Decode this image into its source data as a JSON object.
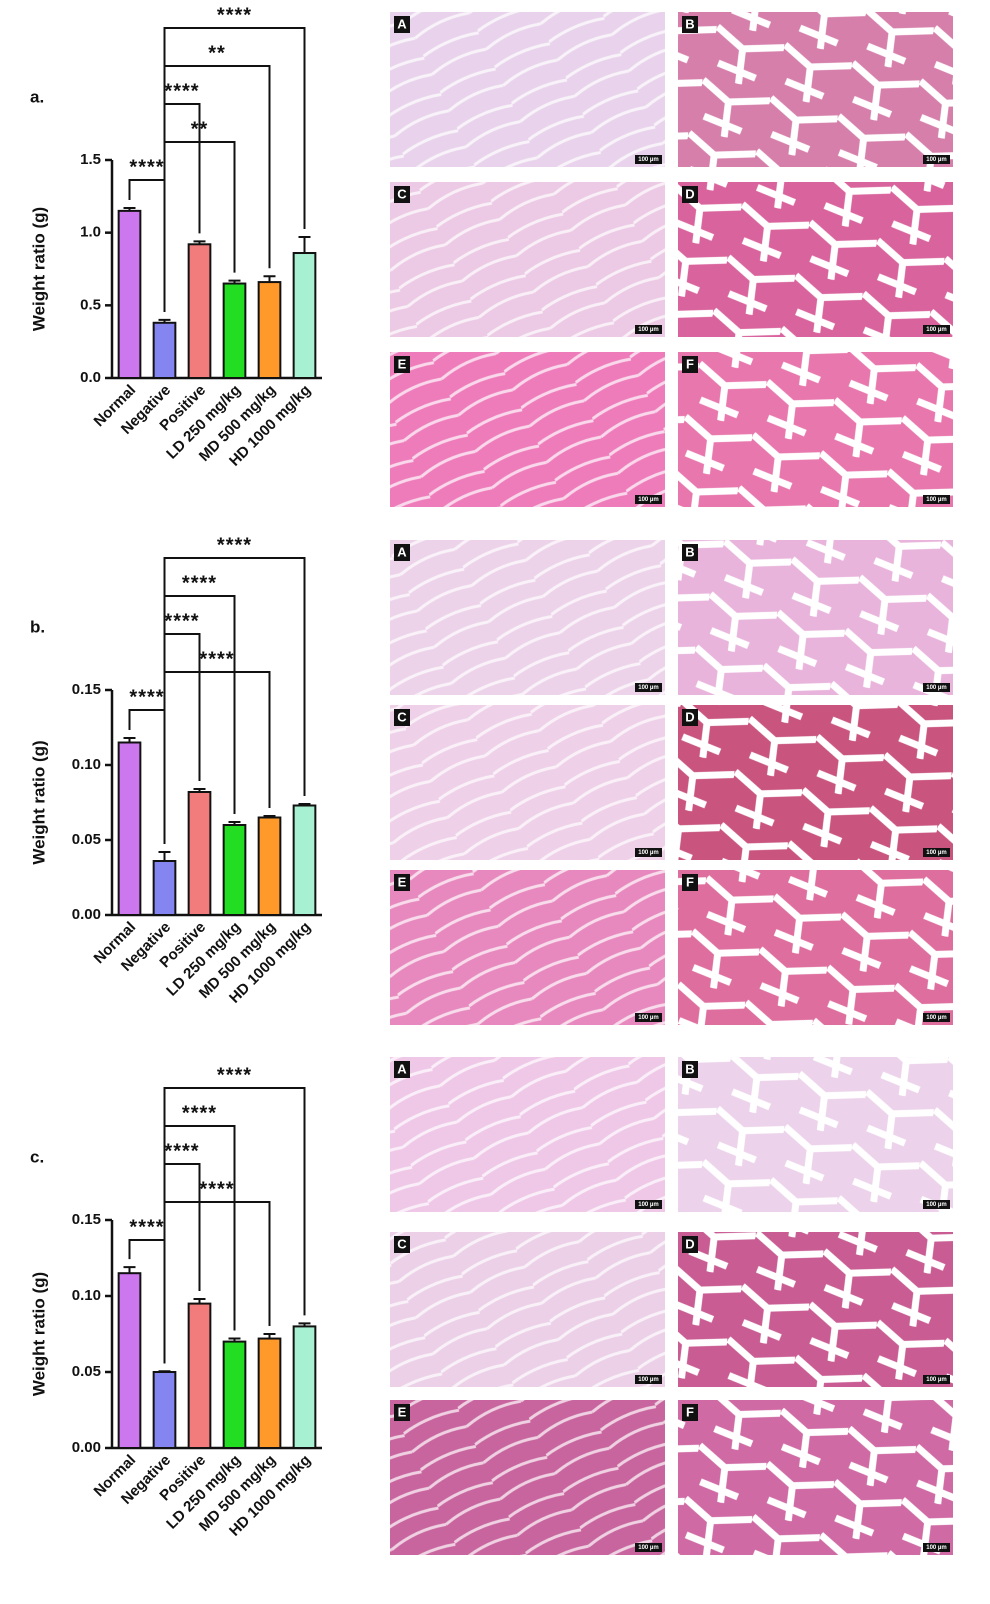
{
  "chart_data": [
    {
      "type": "bar",
      "panel_label": "a.",
      "y_label": "Weight ratio (g)",
      "categories": [
        "Normal",
        "Negative",
        "Positive",
        "LD 250 mg/kg",
        "MD 500 mg/kg",
        "HD 1000 mg/kg"
      ],
      "values": [
        1.15,
        0.38,
        0.92,
        0.65,
        0.66,
        0.86
      ],
      "errors": [
        0.02,
        0.02,
        0.02,
        0.02,
        0.04,
        0.11
      ],
      "colors": [
        "#cc77ee",
        "#8585f2",
        "#f27b7b",
        "#22dd22",
        "#ff9a2a",
        "#a8f0d2"
      ],
      "ylim": [
        0,
        1.5
      ],
      "yticks": [
        {
          "value": 0,
          "label": "0.0"
        },
        0.5,
        {
          "value": 1,
          "label": "1.0"
        },
        1.5
      ],
      "brackets": [
        {
          "groups": [
            "Normal",
            "Negative"
          ],
          "label": "****"
        },
        {
          "groups": [
            "Negative",
            "LD 250 mg/kg"
          ],
          "label": "**"
        },
        {
          "groups": [
            "Negative",
            "Positive"
          ],
          "label": "****"
        },
        {
          "groups": [
            "Negative",
            "MD 500 mg/kg"
          ],
          "label": "**"
        },
        {
          "groups": [
            "Negative",
            "HD 1000 mg/kg"
          ],
          "label": "****"
        }
      ]
    },
    {
      "type": "bar",
      "panel_label": "b.",
      "y_label": "Weight ratio (g)",
      "categories": [
        "Normal",
        "Negative",
        "Positive",
        "LD 250 mg/kg",
        "MD 500 mg/kg",
        "HD 1000 mg/kg"
      ],
      "values": [
        0.115,
        0.036,
        0.082,
        0.06,
        0.065,
        0.073
      ],
      "errors": [
        0.003,
        0.006,
        0.002,
        0.002,
        0.001,
        0.001
      ],
      "colors": [
        "#cc77ee",
        "#8585f2",
        "#f27b7b",
        "#22dd22",
        "#ff9a2a",
        "#a8f0d2"
      ],
      "ylim": [
        0,
        0.15
      ],
      "yticks": [
        {
          "value": 0,
          "label": "0.00"
        },
        {
          "value": 0.05,
          "label": "0.05"
        },
        {
          "value": 0.1,
          "label": "0.10"
        },
        {
          "value": 0.15,
          "label": "0.15"
        }
      ],
      "brackets": [
        {
          "groups": [
            "Normal",
            "Negative"
          ],
          "label": "****"
        },
        {
          "groups": [
            "Negative",
            "MD 500 mg/kg"
          ],
          "label": "****"
        },
        {
          "groups": [
            "Negative",
            "Positive"
          ],
          "label": "****"
        },
        {
          "groups": [
            "Negative",
            "LD 250 mg/kg"
          ],
          "label": "****"
        },
        {
          "groups": [
            "Negative",
            "HD 1000 mg/kg"
          ],
          "label": "****"
        }
      ]
    },
    {
      "type": "bar",
      "panel_label": "c.",
      "y_label": "Weight ratio (g)",
      "categories": [
        "Normal",
        "Negative",
        "Positive",
        "LD 250 mg/kg",
        "MD 500 mg/kg",
        "HD 1000 mg/kg"
      ],
      "values": [
        0.115,
        0.05,
        0.095,
        0.07,
        0.072,
        0.08
      ],
      "errors": [
        0.004,
        0.0005,
        0.003,
        0.002,
        0.003,
        0.002
      ],
      "colors": [
        "#cc77ee",
        "#8585f2",
        "#f27b7b",
        "#22dd22",
        "#ff9a2a",
        "#a8f0d2"
      ],
      "ylim": [
        0,
        0.15
      ],
      "yticks": [
        {
          "value": 0,
          "label": "0.00"
        },
        {
          "value": 0.05,
          "label": "0.05"
        },
        {
          "value": 0.1,
          "label": "0.10"
        },
        {
          "value": 0.15,
          "label": "0.15"
        }
      ],
      "brackets": [
        {
          "groups": [
            "Normal",
            "Negative"
          ],
          "label": "****"
        },
        {
          "groups": [
            "Negative",
            "MD 500 mg/kg"
          ],
          "label": "****"
        },
        {
          "groups": [
            "Negative",
            "Positive"
          ],
          "label": "****"
        },
        {
          "groups": [
            "Negative",
            "LD 250 mg/kg"
          ],
          "label": "****"
        },
        {
          "groups": [
            "Negative",
            "HD 1000 mg/kg"
          ],
          "label": "****"
        }
      ]
    }
  ],
  "micrographs": [
    {
      "labels": [
        "A",
        "B",
        "C",
        "D",
        "E",
        "F"
      ],
      "scale_bar": "100 µm"
    },
    {
      "labels": [
        "A",
        "B",
        "C",
        "D",
        "E",
        "F"
      ],
      "scale_bar": "100 µm"
    },
    {
      "labels": [
        "A",
        "B",
        "C",
        "D",
        "E",
        "F"
      ],
      "scale_bar": "100 µm"
    }
  ]
}
